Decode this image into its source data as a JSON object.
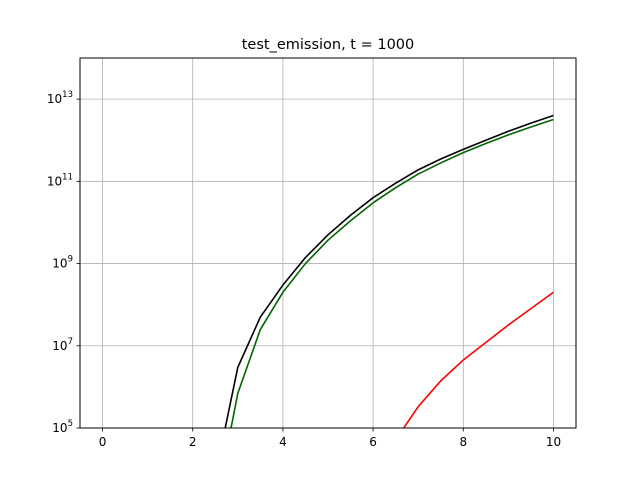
{
  "chart_data": {
    "type": "line",
    "title": "test_emission, t = 1000",
    "xlabel": "",
    "ylabel": "",
    "xlim": [
      -0.5,
      10.5
    ],
    "ylim": [
      100000,
      100000000000000.0
    ],
    "yscale": "log",
    "grid": true,
    "x_ticks": [
      0,
      2,
      4,
      6,
      8,
      10
    ],
    "x_tick_labels": [
      "0",
      "2",
      "4",
      "6",
      "8",
      "10"
    ],
    "y_ticks": [
      100000,
      10000000,
      1000000000,
      100000000000,
      10000000000000
    ],
    "y_tick_labels": [
      {
        "base": "10",
        "exp": "5"
      },
      {
        "base": "10",
        "exp": "7"
      },
      {
        "base": "10",
        "exp": "9"
      },
      {
        "base": "10",
        "exp": "11"
      },
      {
        "base": "10",
        "exp": "13"
      }
    ],
    "series": [
      {
        "color": "#000000",
        "x": [
          2.72,
          3.0,
          3.5,
          4.0,
          4.5,
          5.0,
          5.5,
          6.0,
          6.5,
          7.0,
          7.5,
          8.0,
          8.5,
          9.0,
          9.5,
          10.0
        ],
        "y": [
          100000,
          3000000,
          50000000,
          300000000,
          1400000000,
          5000000000,
          15000000000,
          40000000000,
          90000000000,
          190000000000,
          350000000000,
          600000000000,
          1000000000000,
          1650000000000,
          2600000000000,
          4000000000000
        ]
      },
      {
        "color": "#006400",
        "x": [
          2.85,
          3.0,
          3.5,
          4.0,
          4.5,
          5.0,
          5.5,
          6.0,
          6.5,
          7.0,
          7.5,
          8.0,
          8.5,
          9.0,
          9.5,
          10.0
        ],
        "y": [
          100000,
          700000,
          25000000,
          200000000,
          1000000000,
          3700000000,
          11000000000,
          30000000000,
          70000000000,
          150000000000,
          280000000000,
          500000000000,
          830000000000,
          1350000000000,
          2100000000000,
          3200000000000
        ]
      },
      {
        "color": "#ff0000",
        "x": [
          6.68,
          7.0,
          7.5,
          8.0,
          8.5,
          9.0,
          9.5,
          10.0
        ],
        "y": [
          100000,
          330000,
          1400000,
          4500000,
          12000000,
          32000000,
          80000000,
          200000000
        ]
      }
    ]
  }
}
